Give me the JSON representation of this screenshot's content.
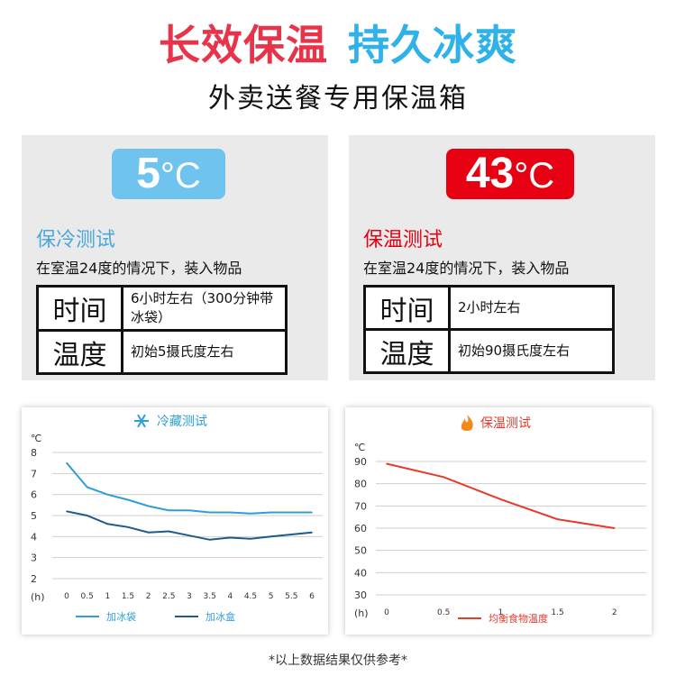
{
  "headline": {
    "part1": "长效保温",
    "part2": "持久冰爽"
  },
  "subtitle": "外卖送餐专用保温箱",
  "cold_test": {
    "temp_value": "5",
    "temp_unit": "°C",
    "title": "保冷测试",
    "condition": "在室温24度的情况下，装入物品",
    "rows": [
      {
        "key": "时间",
        "value": "6小时左右（300分钟带冰袋）"
      },
      {
        "key": "温度",
        "value": "初始5摄氏度左右"
      }
    ]
  },
  "warm_test": {
    "temp_value": "43",
    "temp_unit": "°C",
    "title": "保温测试",
    "condition": "在室温24度的情况下，装入物品",
    "rows": [
      {
        "key": "时间",
        "value": "2小时左右"
      },
      {
        "key": "温度",
        "value": "初始90摄氏度左右"
      }
    ]
  },
  "chart_data": [
    {
      "type": "line",
      "title": "冷藏测试",
      "title_icon": "snowflake-icon",
      "ylabel": "℃",
      "xlabel": "(h)",
      "ylim": [
        2,
        8
      ],
      "yticks": [
        2,
        3,
        4,
        5,
        6,
        7,
        8
      ],
      "xlim": [
        0,
        6
      ],
      "xticks": [
        "0",
        "0.5",
        "1",
        "1.5",
        "2",
        "2.5",
        "3",
        "3.5",
        "4",
        "4.5",
        "5",
        "5.5",
        "6"
      ],
      "x": [
        0,
        0.5,
        1,
        1.5,
        2,
        2.5,
        3,
        3.5,
        4,
        4.5,
        5,
        5.5,
        6
      ],
      "grid": true,
      "legend_position": "bottom",
      "series": [
        {
          "name": "加冰袋",
          "color": "#2e9fd6",
          "values": [
            7.5,
            6.35,
            6.0,
            5.75,
            5.45,
            5.25,
            5.25,
            5.15,
            5.15,
            5.1,
            5.15,
            5.15,
            5.15
          ]
        },
        {
          "name": "加冰盒",
          "color": "#1e5a8c",
          "values": [
            5.2,
            5.0,
            4.6,
            4.45,
            4.2,
            4.25,
            4.05,
            3.85,
            3.95,
            3.9,
            4.0,
            4.1,
            4.2
          ]
        }
      ]
    },
    {
      "type": "line",
      "title": "保温测试",
      "title_icon": "flame-icon",
      "ylabel": "℃",
      "xlabel": "(h)",
      "ylim": [
        30,
        90
      ],
      "yticks": [
        30,
        40,
        50,
        60,
        70,
        80,
        90
      ],
      "xlim": [
        0,
        2.2
      ],
      "xticks": [
        "0",
        "0.5",
        "1",
        "1.5",
        "2"
      ],
      "x": [
        0,
        0.5,
        1,
        1.5,
        2
      ],
      "grid": true,
      "legend_position": "bottom",
      "series": [
        {
          "name": "均衡食物温度",
          "color": "#e83a2a",
          "values": [
            89,
            83,
            73,
            64,
            60
          ]
        }
      ]
    }
  ],
  "footnote": "*以上数据结果仅供参考*"
}
